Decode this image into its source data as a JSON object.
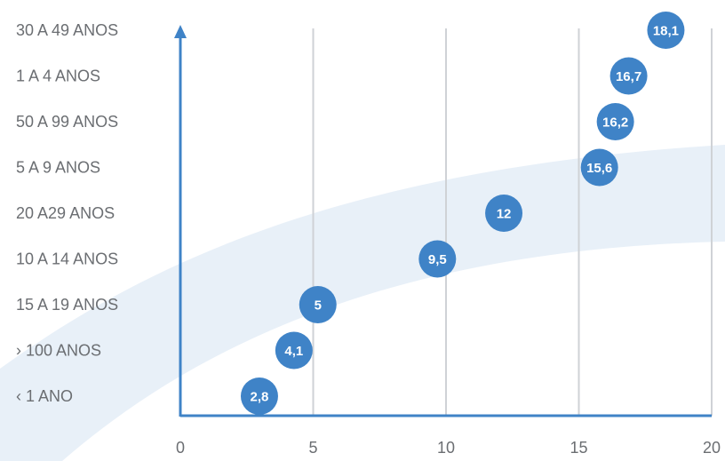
{
  "chart_data": {
    "type": "scatter",
    "categories": [
      "30 A 49 ANOS",
      "1 A 4 ANOS",
      "50 A 99 ANOS",
      "5 A 9 ANOS",
      "20 A29 ANOS",
      "10 A 14 ANOS",
      "15 A 19 ANOS",
      "› 100 ANOS",
      "‹ 1 ANO"
    ],
    "values": [
      18.1,
      16.7,
      16.2,
      15.6,
      12,
      9.5,
      5,
      4.1,
      2.8
    ],
    "value_labels": [
      "18,1",
      "16,7",
      "16,2",
      "15,6",
      "12",
      "9,5",
      "5",
      "4,1",
      "2,8"
    ],
    "x_ticks": [
      0,
      5,
      10,
      15,
      20
    ],
    "x_tick_labels": [
      "0",
      "5",
      "10",
      "15",
      "20"
    ],
    "xlim": [
      0,
      20
    ],
    "title": "",
    "xlabel": "",
    "ylabel": "",
    "grid": "vertical",
    "legend": "none",
    "colors": {
      "marker": "#3f83c7",
      "marker_text": "#ffffff",
      "axis": "#3f83c7",
      "grid": "#cfd2d6",
      "label": "#6b6e72",
      "swoosh": "#e8f0f8"
    }
  }
}
